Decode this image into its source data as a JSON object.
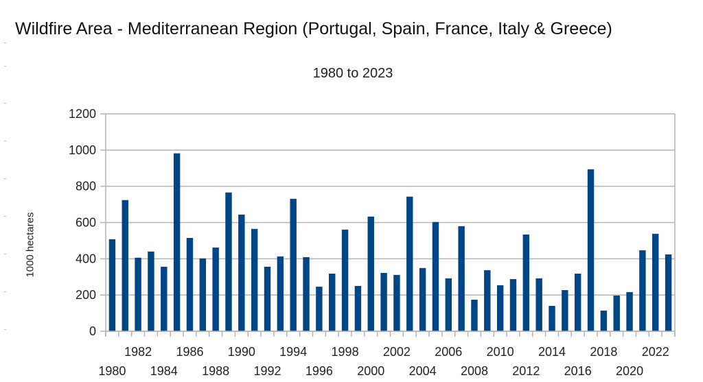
{
  "chart_data": {
    "type": "bar",
    "title": "Wildfire Area  - Mediterranean Region (Portugal, Spain, France, Italy & Greece)",
    "subtitle": "1980 to 2023",
    "xlabel": "",
    "ylabel": "1000 hectares",
    "ylim": [
      0,
      1200
    ],
    "yticks": [
      0,
      200,
      400,
      600,
      800,
      1000,
      1200
    ],
    "grid": true,
    "legend": "none",
    "bar_color": "#004586",
    "categories": [
      "1980",
      "1981",
      "1982",
      "1983",
      "1984",
      "1985",
      "1986",
      "1987",
      "1988",
      "1989",
      "1990",
      "1991",
      "1992",
      "1993",
      "1994",
      "1995",
      "1996",
      "1997",
      "1998",
      "1999",
      "2000",
      "2001",
      "2002",
      "2003",
      "2004",
      "2005",
      "2006",
      "2007",
      "2008",
      "2009",
      "2010",
      "2011",
      "2012",
      "2013",
      "2014",
      "2015",
      "2016",
      "2017",
      "2018",
      "2019",
      "2020",
      "2021",
      "2022",
      "2023"
    ],
    "values": [
      508,
      724,
      406,
      440,
      356,
      982,
      515,
      402,
      462,
      766,
      644,
      565,
      356,
      413,
      731,
      409,
      246,
      318,
      561,
      250,
      633,
      322,
      311,
      743,
      349,
      603,
      292,
      580,
      174,
      337,
      254,
      288,
      534,
      292,
      140,
      227,
      318,
      894,
      114,
      197,
      216,
      447,
      538,
      424
    ],
    "xtick_labels_upper": [
      "1982",
      "1986",
      "1990",
      "1994",
      "1998",
      "2002",
      "2006",
      "2010",
      "2014",
      "2018",
      "2022"
    ],
    "xtick_labels_lower": [
      "1980",
      "1984",
      "1988",
      "1992",
      "1996",
      "2000",
      "2004",
      "2008",
      "2012",
      "2016",
      "2020"
    ]
  }
}
